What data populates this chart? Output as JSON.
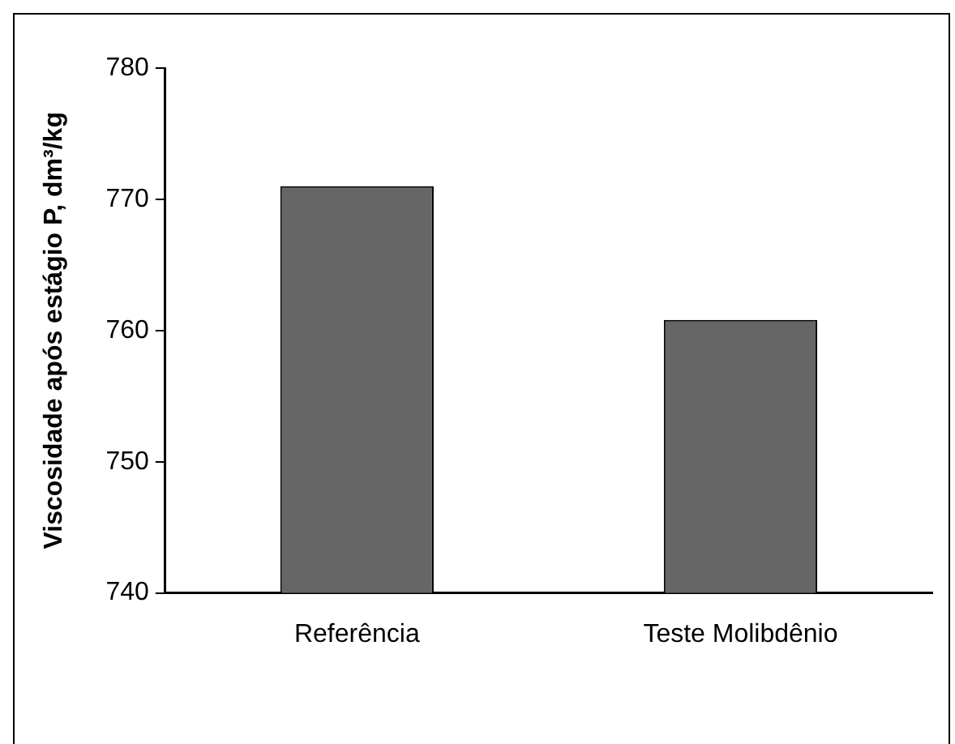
{
  "chart_data": {
    "type": "bar",
    "ylabel": "Viscosidade após estágio P, dm³/kg",
    "categories": [
      "Referência",
      "Teste Molibdênio"
    ],
    "values": [
      771,
      760.8
    ],
    "color": "#666666",
    "ylim": [
      740,
      780
    ],
    "yticks": [
      740,
      750,
      760,
      770,
      780
    ],
    "grid": false,
    "legend": false
  }
}
